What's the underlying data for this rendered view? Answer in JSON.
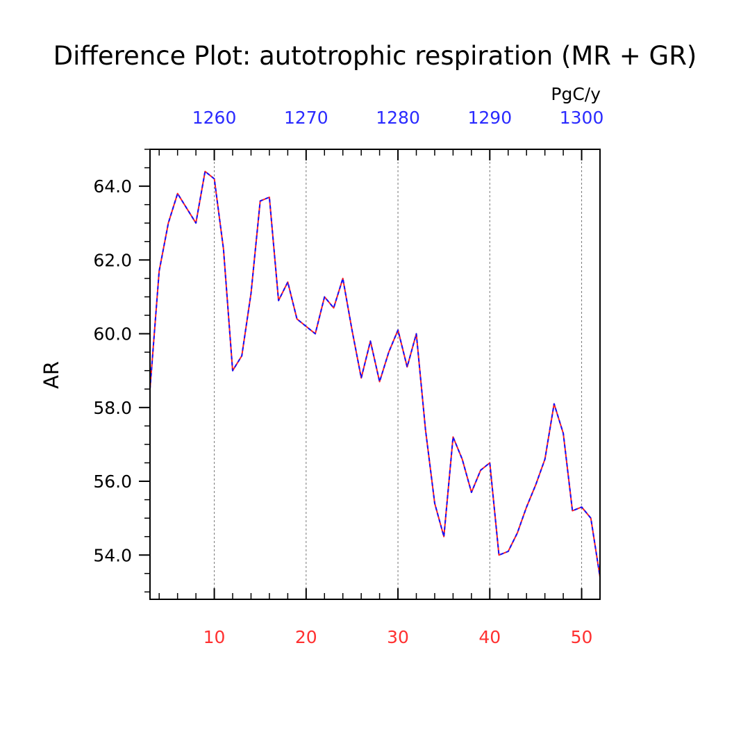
{
  "chart_data": {
    "type": "line",
    "title": "Difference Plot: autotrophic respiration (MR + GR)",
    "units": "PgC/y",
    "ylabel": "AR",
    "xlim": [
      3,
      52
    ],
    "ylim": [
      52.8,
      65.0
    ],
    "top_axis_offset": 1250,
    "top_axis_color": "#2a2aff",
    "bottom_axis_color": "#ff3030",
    "yticks_major": [
      54.0,
      56.0,
      58.0,
      60.0,
      62.0,
      64.0
    ],
    "ytick_labels": [
      "54.0",
      "56.0",
      "58.0",
      "60.0",
      "62.0",
      "64.0"
    ],
    "xticks_major": [
      10,
      20,
      30,
      40,
      50
    ],
    "xtick_labels_bottom": [
      "10",
      "20",
      "30",
      "40",
      "50"
    ],
    "xtick_labels_top": [
      "1260",
      "1270",
      "1280",
      "1290",
      "1300"
    ],
    "vertical_gridlines": "dashed at major ticks",
    "x": [
      3,
      4,
      5,
      6,
      7,
      8,
      9,
      10,
      11,
      12,
      13,
      14,
      15,
      16,
      17,
      18,
      19,
      20,
      21,
      22,
      23,
      24,
      25,
      26,
      27,
      28,
      29,
      30,
      31,
      32,
      33,
      34,
      35,
      36,
      37,
      38,
      39,
      40,
      41,
      42,
      43,
      44,
      45,
      46,
      47,
      48,
      49,
      50,
      51,
      52
    ],
    "series": [
      {
        "color": "#ff2020",
        "style": "solid",
        "values": [
          58.5,
          61.7,
          63.0,
          63.8,
          63.4,
          63.0,
          64.4,
          64.2,
          62.3,
          59.0,
          59.4,
          61.1,
          63.6,
          63.7,
          60.9,
          61.4,
          60.4,
          60.2,
          60.0,
          61.0,
          60.7,
          61.5,
          60.1,
          58.8,
          59.8,
          58.7,
          59.5,
          60.1,
          59.1,
          60.0,
          57.4,
          55.4,
          54.5,
          57.2,
          56.6,
          55.7,
          56.3,
          56.5,
          54.0,
          54.1,
          54.6,
          55.3,
          55.9,
          56.6,
          58.1,
          57.3,
          55.2,
          55.3,
          55.0,
          53.4
        ]
      },
      {
        "color": "#1010ff",
        "style": "dashed",
        "values": [
          58.5,
          61.7,
          63.0,
          63.8,
          63.4,
          63.0,
          64.4,
          64.2,
          62.3,
          59.0,
          59.4,
          61.1,
          63.6,
          63.7,
          60.9,
          61.4,
          60.4,
          60.2,
          60.0,
          61.0,
          60.7,
          61.5,
          60.1,
          58.8,
          59.8,
          58.7,
          59.5,
          60.1,
          59.1,
          60.0,
          57.4,
          55.4,
          54.5,
          57.2,
          56.6,
          55.7,
          56.3,
          56.5,
          54.0,
          54.1,
          54.6,
          55.3,
          55.9,
          56.6,
          58.1,
          57.3,
          55.2,
          55.3,
          55.0,
          53.4
        ]
      }
    ]
  }
}
